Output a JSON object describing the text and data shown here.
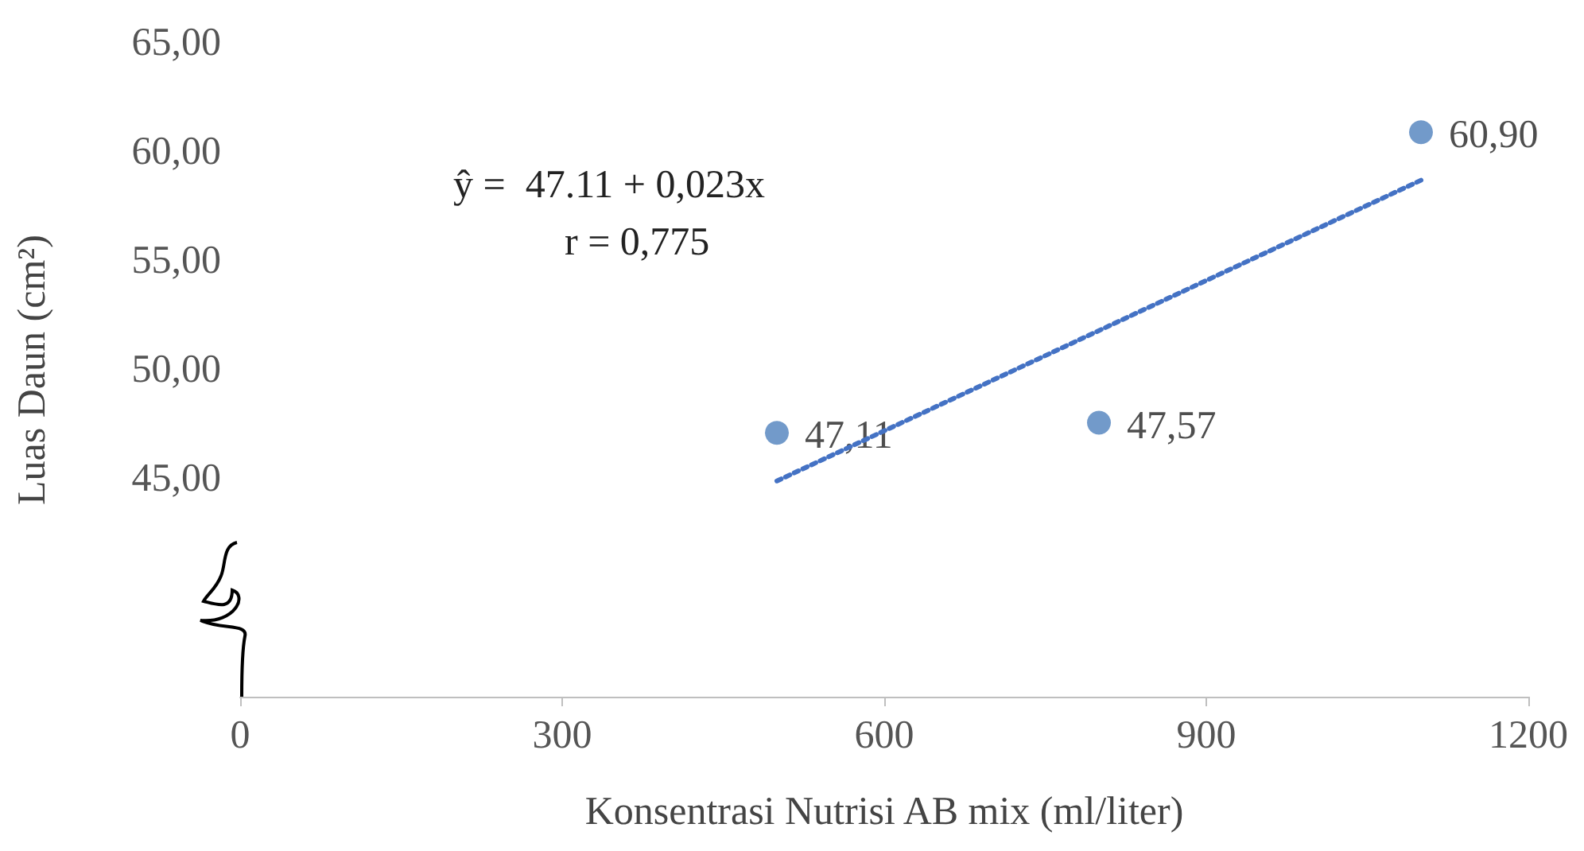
{
  "chart_data": {
    "type": "scatter",
    "xlabel": "Konsentrasi Nutrisi AB mix (ml/liter)",
    "ylabel": "Luas Daun (cm²)",
    "annotations": [
      "ŷ =  47.11 + 0,023x",
      "r = 0,775"
    ],
    "xlim": [
      0,
      1200
    ],
    "xticks": [
      0,
      300,
      600,
      900,
      1200
    ],
    "ylim": [
      35,
      65
    ],
    "yticks": [
      {
        "value": 45,
        "label": "45,00"
      },
      {
        "value": 50,
        "label": "50,00"
      },
      {
        "value": 55,
        "label": "55,00"
      },
      {
        "value": 60,
        "label": "60,00"
      },
      {
        "value": 65,
        "label": "65,00"
      }
    ],
    "grid": false,
    "marker": "circle",
    "series": [
      {
        "color": "#4f81bd",
        "x": [
          500,
          800,
          1100
        ],
        "values": [
          47.11,
          47.57,
          60.9
        ],
        "value_labels": [
          "47,11",
          "47,57",
          "60,90"
        ]
      },
      {
        "type": "line",
        "color": "#4472c4",
        "line_style": "dotted",
        "marker": "none",
        "x": [
          500,
          1100
        ],
        "values": [
          44.9,
          58.7
        ]
      }
    ]
  }
}
